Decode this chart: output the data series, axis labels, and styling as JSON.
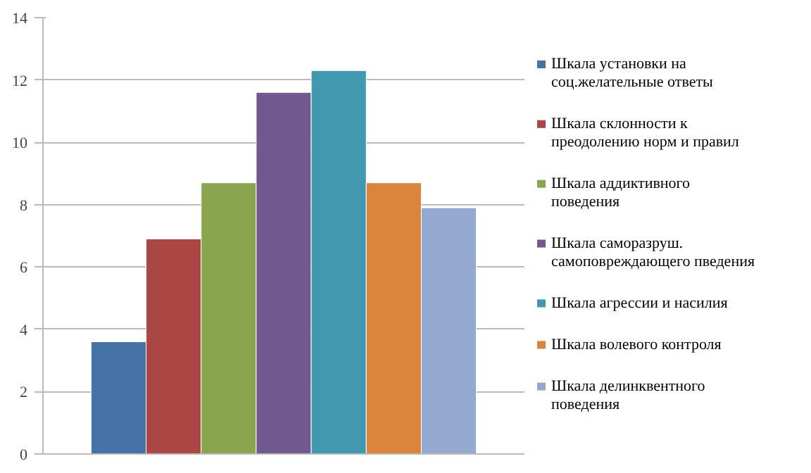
{
  "chart_data": {
    "type": "bar",
    "categories": [
      null
    ],
    "series": [
      {
        "name": "Шкала установки на соц.желательные  ответы",
        "color": "#4572a7",
        "values": [
          3.6
        ]
      },
      {
        "name": "Шкала склонности к преодолению норм и правил",
        "color": "#aa4643",
        "values": [
          6.9
        ]
      },
      {
        "name": "Шкала аддиктивного поведения",
        "color": "#89a54e",
        "values": [
          8.7
        ]
      },
      {
        "name": "Шкала саморазруш. самоповреждающего пведения",
        "color": "#71588f",
        "values": [
          11.6
        ]
      },
      {
        "name": "Шкала агрессии и насилия",
        "color": "#4198af",
        "values": [
          12.3
        ]
      },
      {
        "name": "Шкала волевого контроля",
        "color": "#db843d",
        "values": [
          8.7
        ]
      },
      {
        "name": "Шкала делинквентного поведения",
        "color": "#93a9cf",
        "values": [
          7.9
        ]
      }
    ],
    "ylim": [
      0,
      14
    ],
    "yticks": [
      0,
      2,
      4,
      6,
      8,
      10,
      12,
      14
    ],
    "grid": "y",
    "legend": "right"
  }
}
